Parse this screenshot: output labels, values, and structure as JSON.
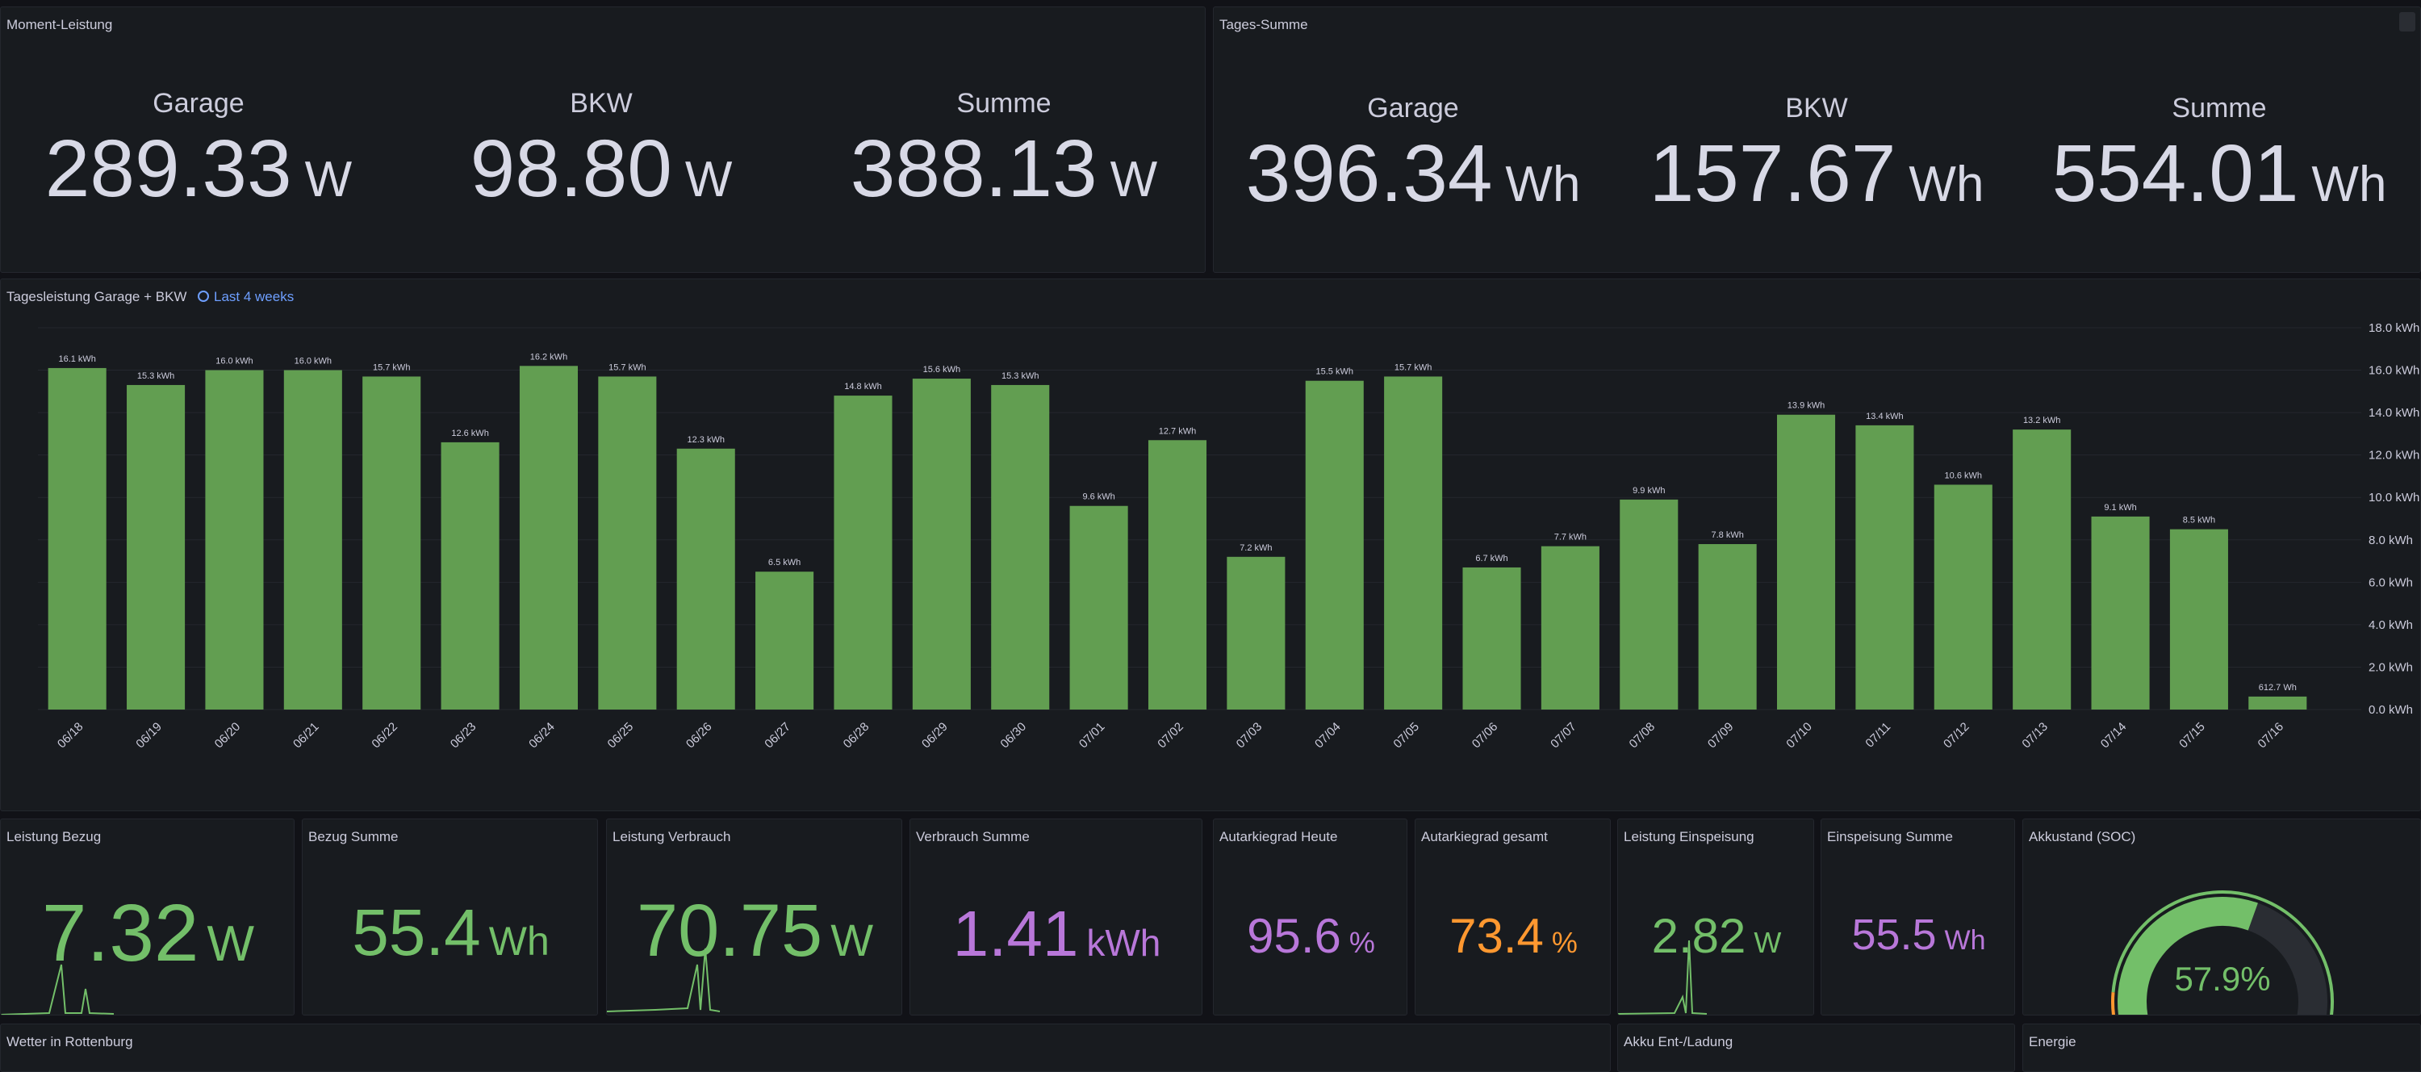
{
  "panels_top": [
    {
      "title": "Moment-Leistung",
      "stats": [
        {
          "label": "Garage",
          "value": "289.33",
          "unit": "W"
        },
        {
          "label": "BKW",
          "value": "98.80",
          "unit": "W"
        },
        {
          "label": "Summe",
          "value": "388.13",
          "unit": "W"
        }
      ]
    },
    {
      "title": "Tages-Summe",
      "stats": [
        {
          "label": "Garage",
          "value": "396.34",
          "unit": "Wh"
        },
        {
          "label": "BKW",
          "value": "157.67",
          "unit": "Wh"
        },
        {
          "label": "Summe",
          "value": "554.01",
          "unit": "Wh"
        }
      ]
    }
  ],
  "chart_data": {
    "type": "bar",
    "title": "Tagesleistung Garage + BKW",
    "time_range": "Last 4 weeks",
    "color": "#629e51",
    "categories": [
      "06/18",
      "06/19",
      "06/20",
      "06/21",
      "06/22",
      "06/23",
      "06/24",
      "06/25",
      "06/26",
      "06/27",
      "06/28",
      "06/29",
      "06/30",
      "07/01",
      "07/02",
      "07/03",
      "07/04",
      "07/05",
      "07/06",
      "07/07",
      "07/08",
      "07/09",
      "07/10",
      "07/11",
      "07/12",
      "07/13",
      "07/14",
      "07/15",
      "07/16"
    ],
    "values": [
      16.1,
      15.3,
      16.0,
      16.0,
      15.7,
      12.6,
      16.2,
      15.7,
      12.3,
      6.5,
      14.8,
      15.6,
      15.3,
      9.6,
      12.7,
      7.2,
      15.5,
      15.7,
      6.7,
      7.7,
      9.9,
      7.8,
      13.9,
      13.4,
      10.6,
      13.2,
      9.1,
      8.5,
      0.6127
    ],
    "value_labels": [
      "16.1 kWh",
      "15.3 kWh",
      "16.0 kWh",
      "16.0 kWh",
      "15.7 kWh",
      "12.6 kWh",
      "16.2 kWh",
      "15.7 kWh",
      "12.3 kWh",
      "6.5 kWh",
      "14.8 kWh",
      "15.6 kWh",
      "15.3 kWh",
      "9.6 kWh",
      "12.7 kWh",
      "7.2 kWh",
      "15.5 kWh",
      "15.7 kWh",
      "6.7 kWh",
      "7.7 kWh",
      "9.9 kWh",
      "7.8 kWh",
      "13.9 kWh",
      "13.4 kWh",
      "10.6 kWh",
      "13.2 kWh",
      "9.1 kWh",
      "8.5 kWh",
      "612.7 Wh"
    ],
    "ylim": [
      0,
      18
    ],
    "yticks": [
      {
        "value": 0,
        "label": "0.0 kWh"
      },
      {
        "value": 2,
        "label": "2.0 kWh"
      },
      {
        "value": 4,
        "label": "4.0 kWh"
      },
      {
        "value": 6,
        "label": "6.0 kWh"
      },
      {
        "value": 8,
        "label": "8.0 kWh"
      },
      {
        "value": 10,
        "label": "10.0 kWh"
      },
      {
        "value": 12,
        "label": "12.0 kWh"
      },
      {
        "value": 14,
        "label": "14.0 kWh"
      },
      {
        "value": 16,
        "label": "16.0 kWh"
      },
      {
        "value": 18,
        "label": "18.0 kWh"
      }
    ],
    "grid": true
  },
  "stat_panels": [
    {
      "title": "Leistung Bezug",
      "value": "7.32",
      "unit": "W",
      "color": "#73bf69"
    },
    {
      "title": "Bezug Summe",
      "value": "55.4",
      "unit": "Wh",
      "color": "#73bf69"
    },
    {
      "title": "Leistung Verbrauch",
      "value": "70.75",
      "unit": "W",
      "color": "#73bf69"
    },
    {
      "title": "Verbrauch Summe",
      "value": "1.41",
      "unit": "kWh",
      "color": "#b877d9"
    },
    {
      "title": "Autarkiegrad Heute",
      "value": "95.6",
      "unit": "%",
      "color": "#b877d9"
    },
    {
      "title": "Autarkiegrad gesamt",
      "value": "73.4",
      "unit": "%",
      "color": "#ff9830"
    },
    {
      "title": "Leistung Einspeisung",
      "value": "2.82",
      "unit": "W",
      "color": "#73bf69"
    },
    {
      "title": "Einspeisung Summe",
      "value": "55.5",
      "unit": "Wh",
      "color": "#b877d9"
    }
  ],
  "gauge": {
    "title": "Akkustand (SOC)",
    "value": 57.9,
    "value_label": "57.9%",
    "range": [
      0,
      100
    ],
    "color": "#73bf69"
  },
  "bottom_panels": [
    "Wetter in Rottenburg",
    "Akku Ent-/Ladung",
    "Energie"
  ]
}
